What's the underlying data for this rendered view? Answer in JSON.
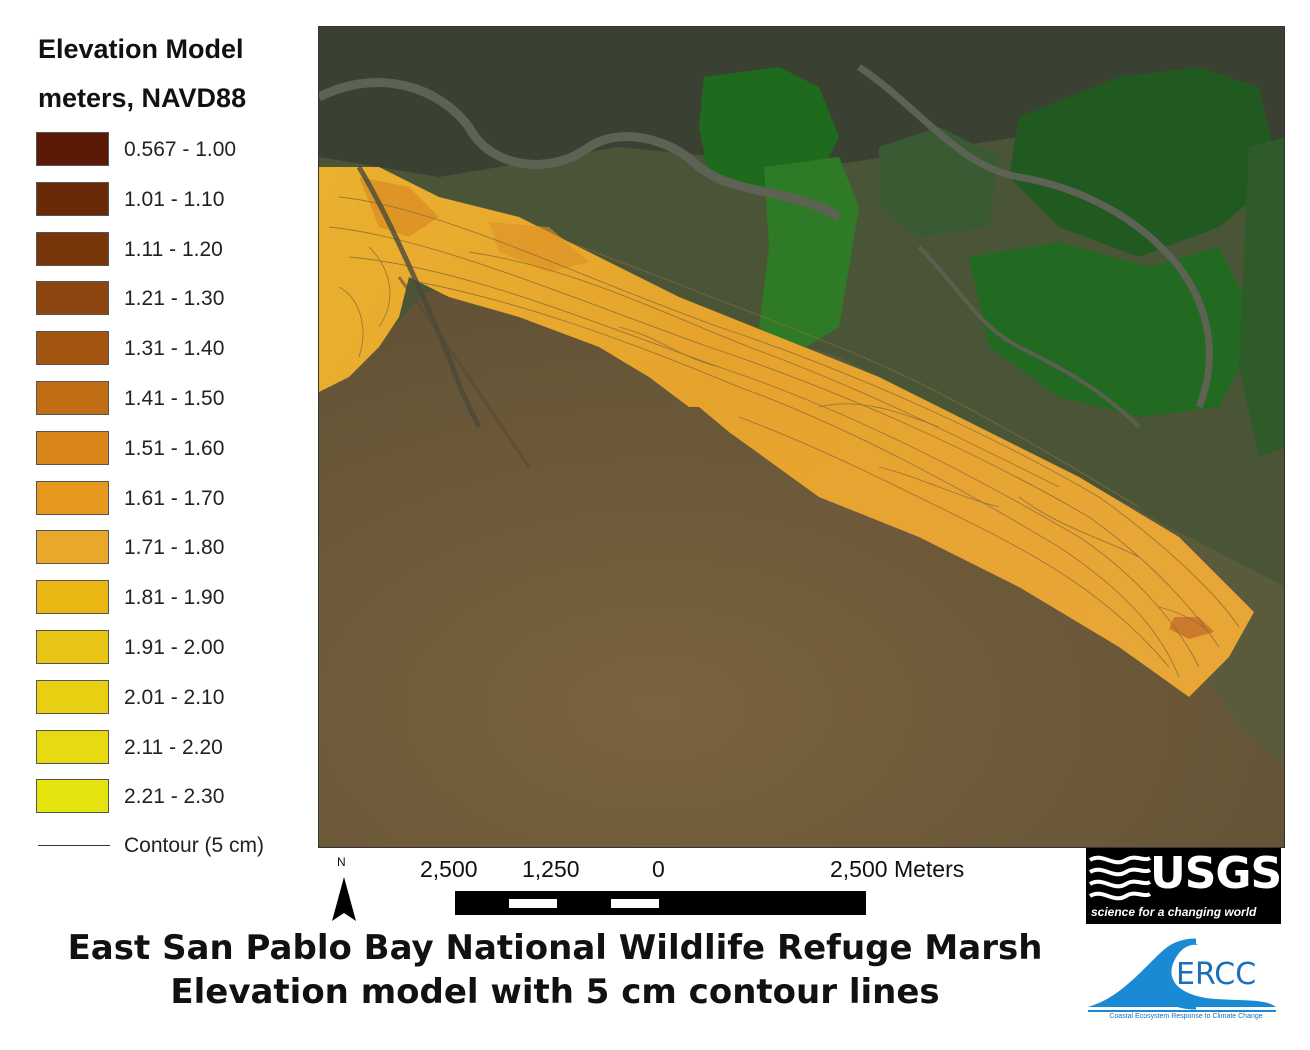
{
  "legend": {
    "title_line1": "Elevation Model",
    "title_line2": "meters, NAVD88",
    "items": [
      {
        "label": "0.567 - 1.00",
        "color": "#5a1a05"
      },
      {
        "label": "1.01 - 1.10",
        "color": "#6a2a08"
      },
      {
        "label": "1.11 - 1.20",
        "color": "#7a360b"
      },
      {
        "label": "1.21 - 1.30",
        "color": "#8e4610"
      },
      {
        "label": "1.31 - 1.40",
        "color": "#a25612"
      },
      {
        "label": "1.41 - 1.50",
        "color": "#c06d14"
      },
      {
        "label": "1.51 - 1.60",
        "color": "#d8861c"
      },
      {
        "label": "1.61 - 1.70",
        "color": "#e59a1e"
      },
      {
        "label": "1.71 - 1.80",
        "color": "#eaa82a"
      },
      {
        "label": "1.81 - 1.90",
        "color": "#e9b612"
      },
      {
        "label": "1.91 - 2.00",
        "color": "#e8c414"
      },
      {
        "label": "2.01 - 2.10",
        "color": "#e8cf12"
      },
      {
        "label": "2.11 - 2.20",
        "color": "#e8da10"
      },
      {
        "label": "2.21 - 2.30",
        "color": "#e6e40e"
      }
    ],
    "contour_label": "Contour (5 cm)"
  },
  "scale": {
    "labels": [
      "2,500",
      "1,250",
      "0",
      "2,500 Meters"
    ]
  },
  "north_label": "N",
  "title": {
    "line1": "East San Pablo Bay National Wildlife Refuge Marsh",
    "line2": "Elevation model with 5 cm contour lines"
  },
  "logos": {
    "usgs_wordmark": "USGS",
    "usgs_tagline": "science for a changing world",
    "cercc_wordmark": "ERCC",
    "cercc_tagline": "Coastal Ecosystem Response to Climate Change"
  },
  "colors": {
    "bay": "#76603c",
    "wetland": "#3f4a30",
    "pond_green": "#1f6a1f",
    "channel": "#5a5d52",
    "elevation_fill": "#eba82a"
  }
}
